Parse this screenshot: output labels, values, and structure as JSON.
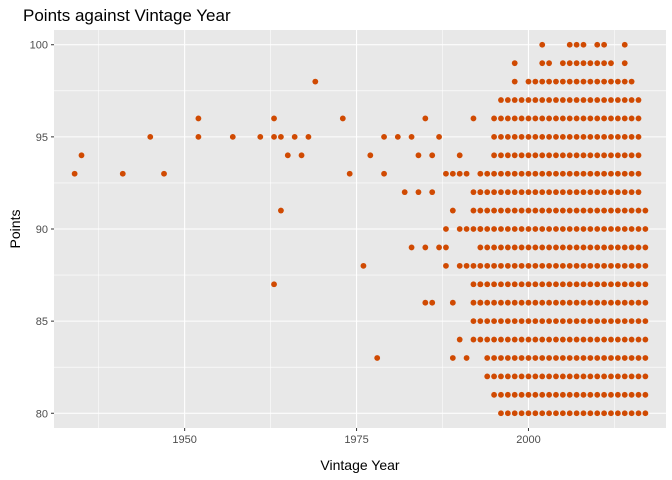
{
  "chart_data": {
    "type": "scatter",
    "title": "Points against Vintage Year",
    "xlabel": "Vintage Year",
    "ylabel": "Points",
    "xlim": [
      1931,
      2020
    ],
    "ylim": [
      79.2,
      100.8
    ],
    "x_ticks": [
      1950,
      1975,
      2000
    ],
    "x_tick_labels": [
      "1950",
      "1975",
      "2000"
    ],
    "y_ticks": [
      80,
      85,
      90,
      95,
      100
    ],
    "y_tick_labels": [
      "80",
      "85",
      "90",
      "95",
      "100"
    ],
    "grid": true,
    "legend": "none",
    "colors": {
      "point": "#d04a02",
      "panel": "#e8e8e8",
      "grid": "#ffffff"
    },
    "dense_region": {
      "x_start": 1993,
      "x_end": 2017,
      "y_min": 80,
      "y_max": 100,
      "note_year_min_points": [
        [
          1993,
          84,
          93
        ],
        [
          1994,
          82,
          93
        ],
        [
          1995,
          81,
          96
        ],
        [
          1996,
          80,
          97
        ],
        [
          1997,
          80,
          97
        ],
        [
          1998,
          80,
          99
        ],
        [
          1999,
          80,
          97
        ],
        [
          2000,
          80,
          98
        ],
        [
          2001,
          80,
          98
        ],
        [
          2002,
          80,
          100
        ],
        [
          2003,
          80,
          99
        ],
        [
          2004,
          80,
          98
        ],
        [
          2005,
          80,
          99
        ],
        [
          2006,
          80,
          100
        ],
        [
          2007,
          80,
          100
        ],
        [
          2008,
          80,
          100
        ],
        [
          2009,
          80,
          99
        ],
        [
          2010,
          80,
          100
        ],
        [
          2011,
          80,
          100
        ],
        [
          2012,
          80,
          99
        ],
        [
          2013,
          80,
          98
        ],
        [
          2014,
          80,
          100
        ],
        [
          2015,
          80,
          98
        ],
        [
          2016,
          80,
          97
        ],
        [
          2017,
          80,
          91
        ]
      ]
    },
    "points": [
      [
        1934,
        93
      ],
      [
        1935,
        94
      ],
      [
        1941,
        93
      ],
      [
        1945,
        95
      ],
      [
        1947,
        93
      ],
      [
        1952,
        95
      ],
      [
        1952,
        96
      ],
      [
        1957,
        95
      ],
      [
        1961,
        95
      ],
      [
        1963,
        95
      ],
      [
        1963,
        96
      ],
      [
        1963,
        87
      ],
      [
        1964,
        95
      ],
      [
        1964,
        91
      ],
      [
        1965,
        94
      ],
      [
        1966,
        95
      ],
      [
        1967,
        94
      ],
      [
        1968,
        95
      ],
      [
        1969,
        98
      ],
      [
        1973,
        96
      ],
      [
        1974,
        93
      ],
      [
        1976,
        88
      ],
      [
        1977,
        94
      ],
      [
        1978,
        83
      ],
      [
        1979,
        93
      ],
      [
        1979,
        95
      ],
      [
        1981,
        95
      ],
      [
        1982,
        92
      ],
      [
        1983,
        95
      ],
      [
        1983,
        89
      ],
      [
        1984,
        94
      ],
      [
        1984,
        92
      ],
      [
        1985,
        96
      ],
      [
        1985,
        89
      ],
      [
        1985,
        86
      ],
      [
        1986,
        92
      ],
      [
        1986,
        94
      ],
      [
        1986,
        86
      ],
      [
        1987,
        95
      ],
      [
        1987,
        89
      ],
      [
        1988,
        93
      ],
      [
        1988,
        90
      ],
      [
        1988,
        89
      ],
      [
        1988,
        88
      ],
      [
        1989,
        93
      ],
      [
        1989,
        91
      ],
      [
        1989,
        86
      ],
      [
        1989,
        83
      ],
      [
        1990,
        93
      ],
      [
        1990,
        90
      ],
      [
        1990,
        88
      ],
      [
        1990,
        84
      ],
      [
        1990,
        94
      ],
      [
        1991,
        93
      ],
      [
        1991,
        90
      ],
      [
        1991,
        88
      ],
      [
        1991,
        83
      ],
      [
        1992,
        96
      ],
      [
        1992,
        92
      ],
      [
        1992,
        91
      ],
      [
        1992,
        90
      ],
      [
        1992,
        88
      ],
      [
        1992,
        87
      ],
      [
        1992,
        86
      ],
      [
        1992,
        85
      ],
      [
        1992,
        84
      ],
      [
        1993,
        92
      ],
      [
        1993,
        90
      ],
      [
        1993,
        87
      ],
      [
        1993,
        86
      ]
    ]
  }
}
